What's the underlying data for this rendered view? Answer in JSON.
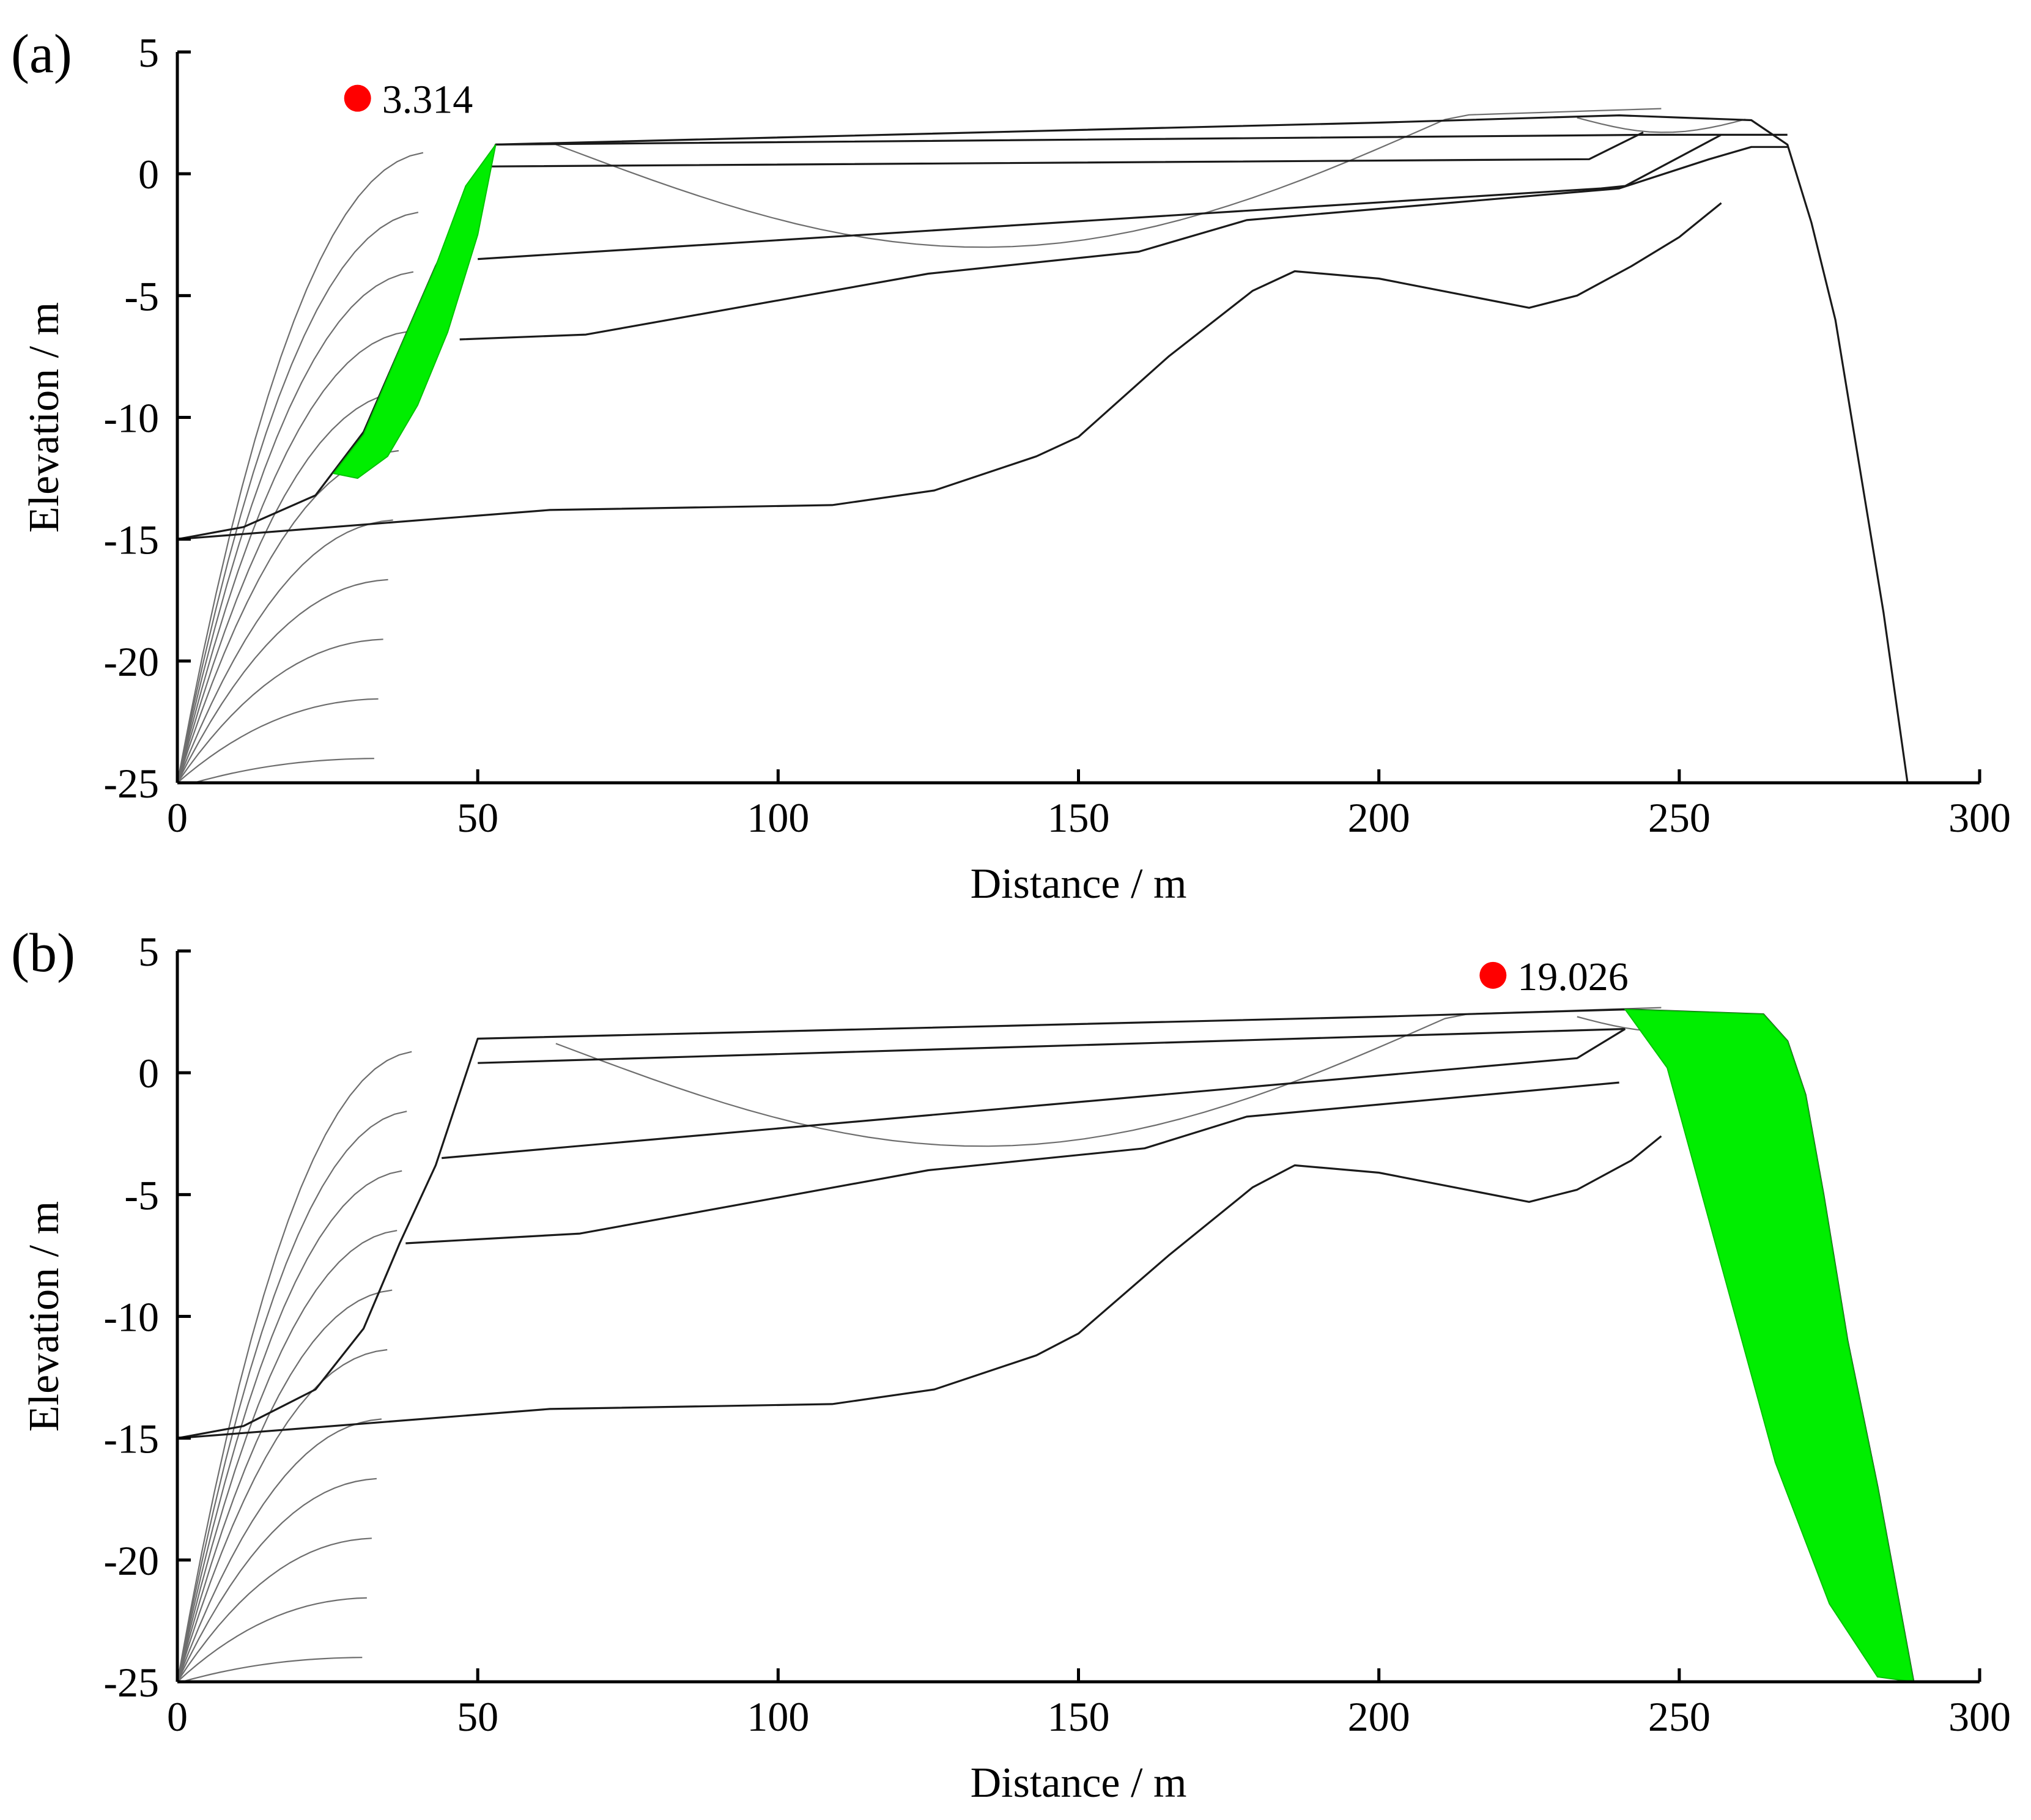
{
  "colors": {
    "slide_fill": "#00ee00",
    "marker": "#ff0000",
    "strata": "#1a1a1a",
    "contours": "#6e6e6e"
  },
  "chart_data": [
    {
      "type": "line",
      "panel_label": "(a)",
      "title": "",
      "xlabel": "Distance / m",
      "ylabel": "Elevation / m",
      "xlim": [
        0,
        300
      ],
      "ylim": [
        -25,
        5
      ],
      "xticks": [
        0,
        50,
        100,
        150,
        200,
        250,
        300
      ],
      "yticks": [
        5,
        0,
        -5,
        -10,
        -15,
        -20,
        -25
      ],
      "safety_factor": {
        "label": "3.314",
        "x": 30,
        "y": 3.1
      },
      "slip_surface": {
        "x": [
          26,
          31,
          37,
          43,
          48,
          53,
          50,
          45,
          40,
          35,
          30
        ],
        "y": [
          -12.3,
          -10.7,
          -7.2,
          -3.8,
          -0.5,
          1.2,
          -2.5,
          -6.5,
          -9.5,
          -11.6,
          -12.5
        ]
      },
      "ground_surface": {
        "x": [
          0,
          11,
          23,
          31,
          37,
          43,
          53,
          150,
          200,
          240,
          262,
          268,
          272,
          276,
          280,
          284,
          288
        ],
        "y": [
          -15,
          -14.5,
          -13.2,
          -10.6,
          -7.2,
          -3.8,
          1.2,
          1.8,
          2.1,
          2.4,
          2.2,
          1.2,
          -2,
          -6,
          -12,
          -18,
          -25
        ]
      },
      "strata_lines": [
        {
          "x": [
            53,
            245,
            268
          ],
          "y": [
            1.2,
            1.6,
            1.6
          ]
        },
        {
          "x": [
            52,
            235,
            244
          ],
          "y": [
            0.3,
            0.6,
            1.7
          ]
        },
        {
          "x": [
            50,
            237,
            241,
            257
          ],
          "y": [
            -3.5,
            -0.6,
            -0.5,
            1.6
          ]
        },
        {
          "x": [
            47,
            68,
            125,
            160,
            178,
            240,
            255,
            262,
            268
          ],
          "y": [
            -6.8,
            -6.6,
            -4.1,
            -3.2,
            -1.9,
            -0.6,
            0.6,
            1.1,
            1.1
          ]
        },
        {
          "x": [
            0,
            62,
            109,
            126,
            143,
            150,
            165,
            179,
            186,
            200,
            225,
            233,
            242,
            250,
            257
          ],
          "y": [
            -15,
            -13.8,
            -13.6,
            -13,
            -11.6,
            -10.8,
            -7.5,
            -4.8,
            -4,
            -4.3,
            -5.5,
            -5,
            -3.8,
            -2.6,
            -1.2
          ]
        }
      ],
      "contour_count": 12
    },
    {
      "type": "line",
      "panel_label": "(b)",
      "title": "",
      "xlabel": "Distance / m",
      "ylabel": "Elevation / m",
      "xlim": [
        0,
        300
      ],
      "ylim": [
        -25,
        5
      ],
      "xticks": [
        0,
        50,
        100,
        150,
        200,
        250,
        300
      ],
      "yticks": [
        5,
        0,
        -5,
        -10,
        -15,
        -20,
        -25
      ],
      "safety_factor": {
        "label": "19.026",
        "x": 219,
        "y": 4.0
      },
      "slip_surface": {
        "x": [
          241,
          264,
          268,
          271,
          274,
          278,
          283,
          289,
          283,
          275,
          266,
          256,
          248
        ],
        "y": [
          2.6,
          2.4,
          1.3,
          -0.9,
          -5,
          -11,
          -17,
          -25,
          -24.8,
          -21.8,
          -16,
          -7,
          0.2
        ]
      },
      "ground_surface": {
        "x": [
          0,
          11,
          23,
          31,
          37,
          43,
          50,
          150,
          200,
          241,
          264,
          268,
          271,
          274,
          278,
          283,
          289
        ],
        "y": [
          -15,
          -14.5,
          -13,
          -10.5,
          -7,
          -3.8,
          1.4,
          2.0,
          2.3,
          2.6,
          2.4,
          1.3,
          -0.9,
          -5,
          -11,
          -17,
          -25
        ]
      },
      "strata_lines": [
        {
          "x": [
            50,
            241
          ],
          "y": [
            0.4,
            1.8
          ]
        },
        {
          "x": [
            44,
            233,
            241
          ],
          "y": [
            -3.5,
            0.6,
            1.8
          ]
        },
        {
          "x": [
            38,
            67,
            125,
            161,
            178,
            240
          ],
          "y": [
            -7,
            -6.6,
            -4,
            -3.1,
            -1.8,
            -0.4
          ]
        },
        {
          "x": [
            0,
            62,
            109,
            126,
            143,
            150,
            165,
            179,
            186,
            200,
            225,
            233,
            242,
            247
          ],
          "y": [
            -15,
            -13.8,
            -13.6,
            -13,
            -11.6,
            -10.7,
            -7.5,
            -4.7,
            -3.8,
            -4.1,
            -5.3,
            -4.8,
            -3.6,
            -2.6
          ]
        }
      ],
      "contour_count": 12
    }
  ]
}
